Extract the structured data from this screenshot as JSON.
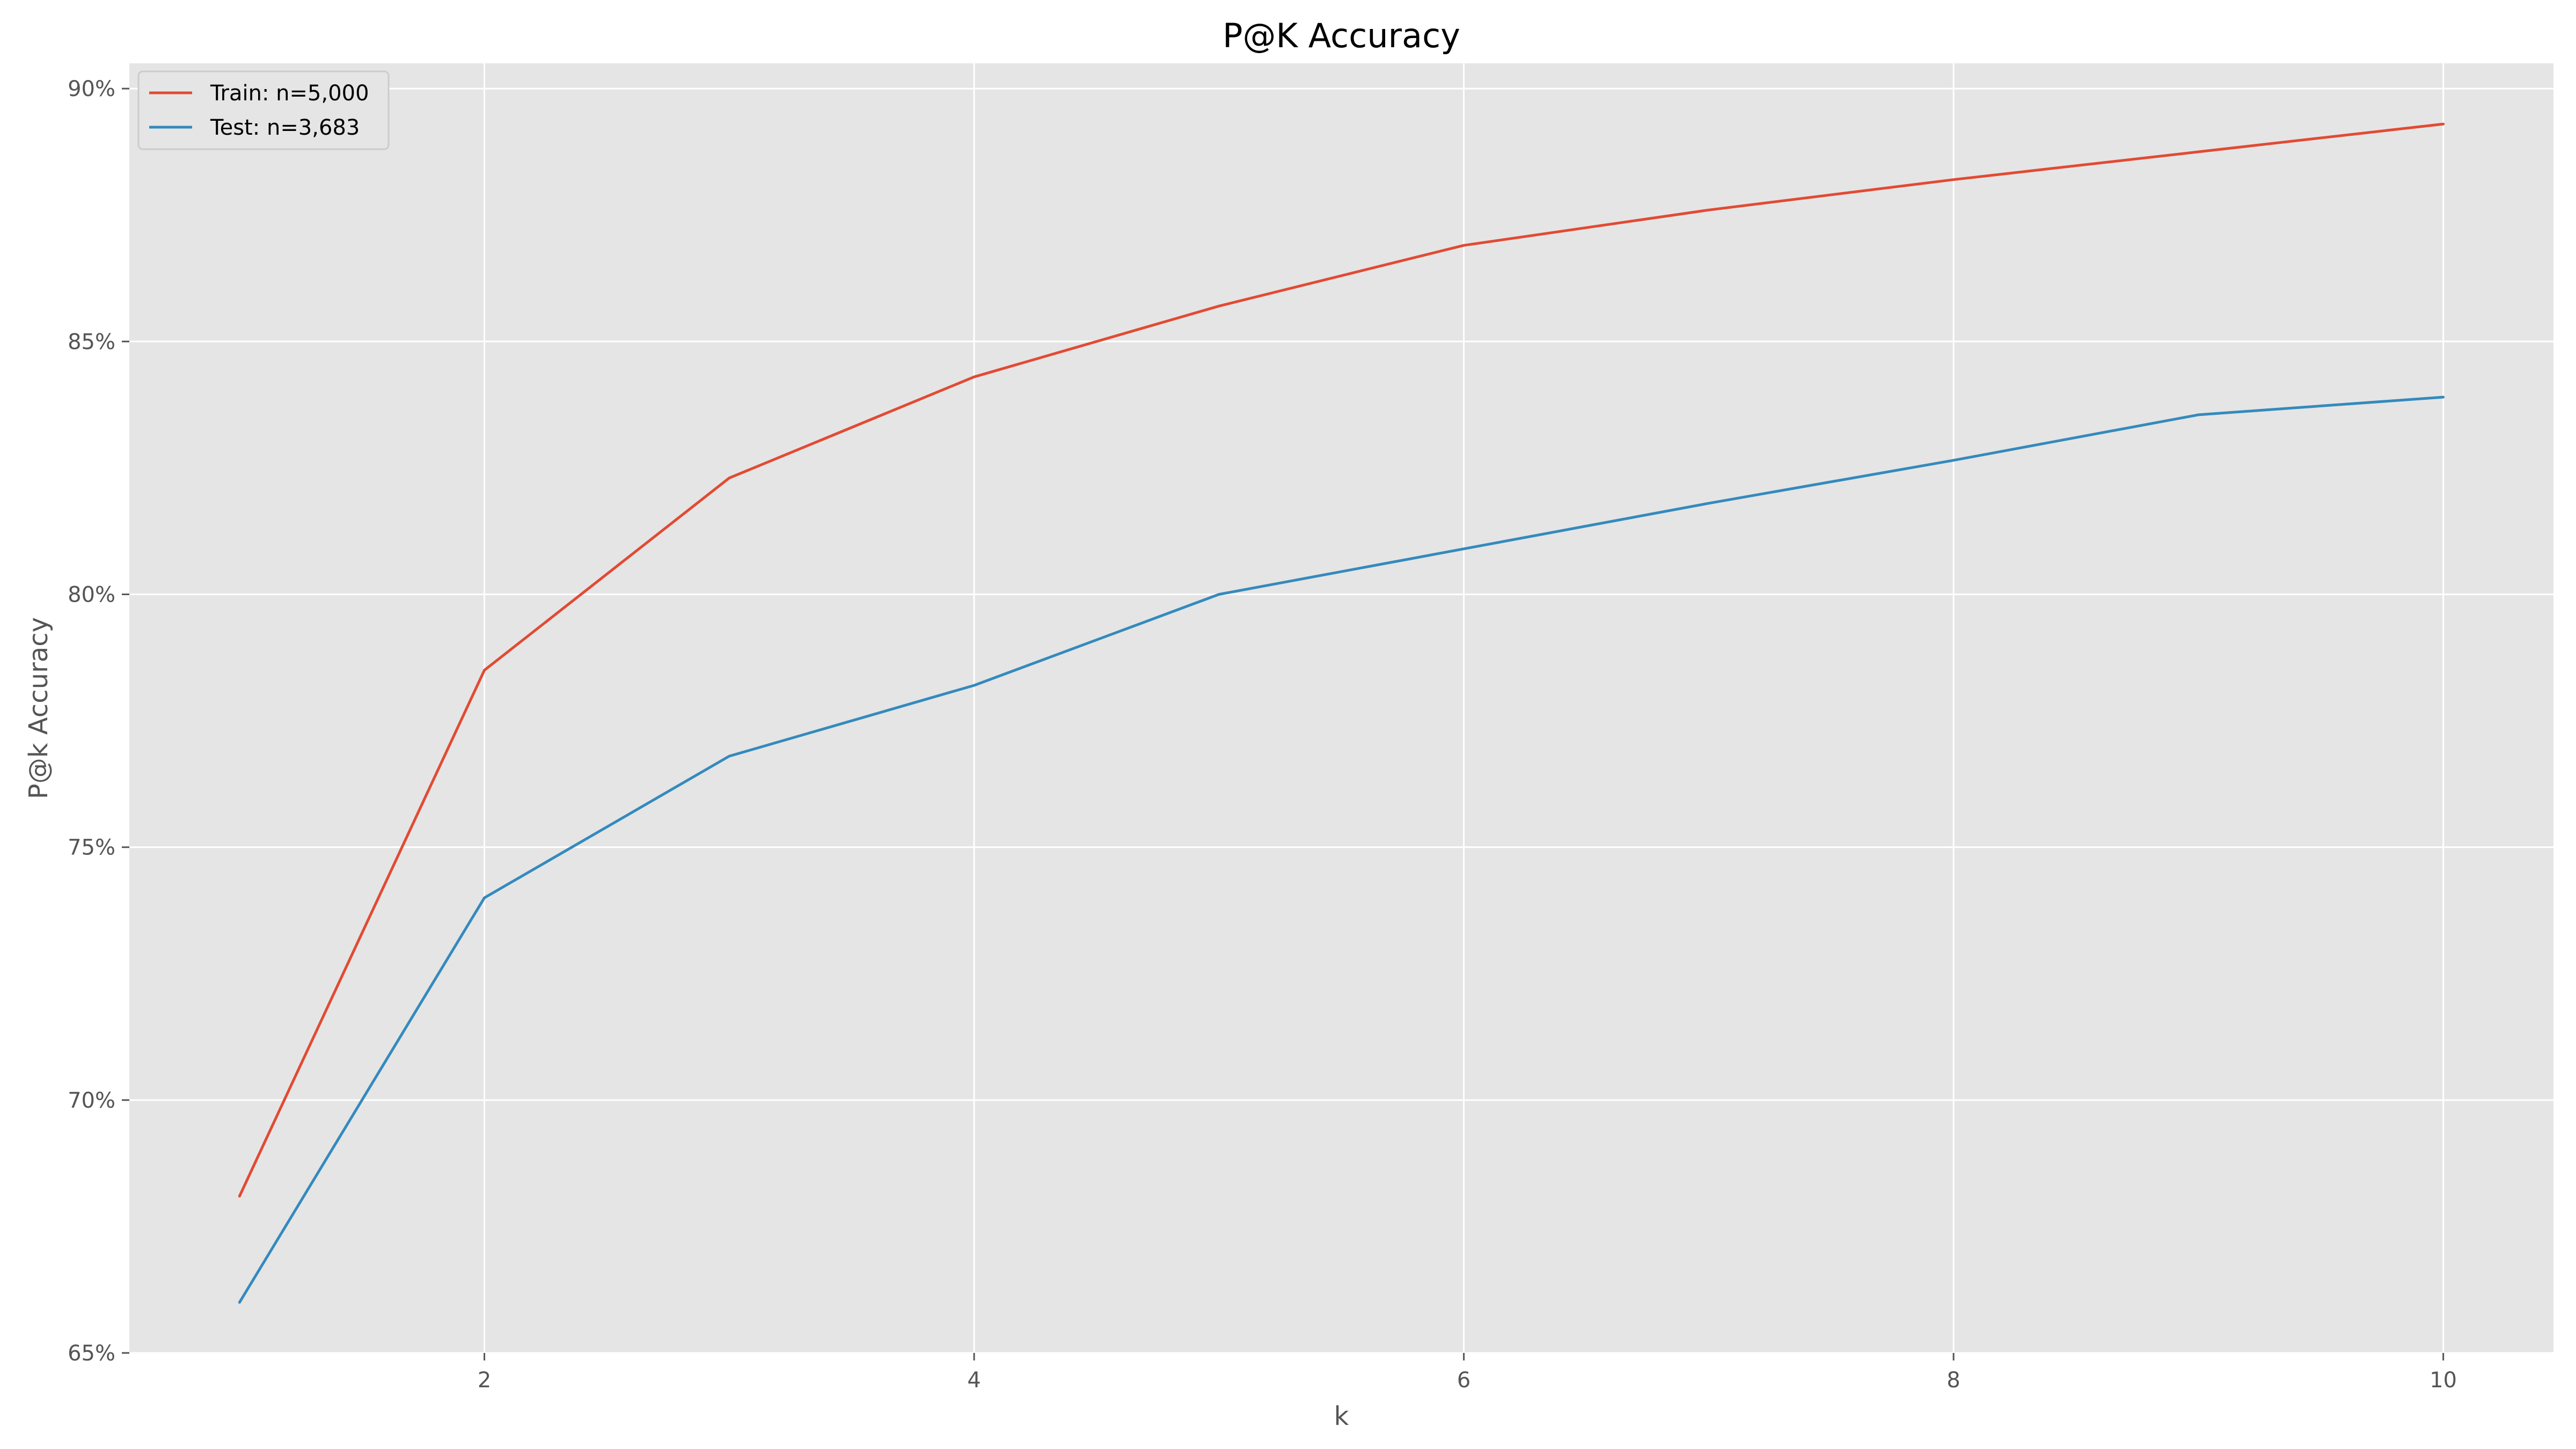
{
  "chart_data": {
    "type": "line",
    "title": "P@K Accuracy",
    "xlabel": "k",
    "ylabel": "P@k Accuracy",
    "x": [
      1,
      2,
      3,
      4,
      5,
      6,
      7,
      8,
      9,
      10
    ],
    "xlim": [
      0.55,
      10.45
    ],
    "ylim": [
      0.65,
      0.905
    ],
    "xticks": [
      2,
      4,
      6,
      8,
      10
    ],
    "xtick_labels": [
      "2",
      "4",
      "6",
      "8",
      "10"
    ],
    "yticks": [
      0.65,
      0.7,
      0.75,
      0.8,
      0.85,
      0.9
    ],
    "ytick_labels": [
      "65%",
      "70%",
      "75%",
      "80%",
      "85%",
      "90%"
    ],
    "grid": true,
    "legend_position": "top-left",
    "series": [
      {
        "name": "Train: n=5,000",
        "color": "#E24A33",
        "values": [
          0.681,
          0.785,
          0.823,
          0.843,
          0.857,
          0.869,
          0.876,
          0.882,
          0.8875,
          0.893
        ]
      },
      {
        "name": "Test: n=3,683",
        "color": "#348ABD",
        "values": [
          0.66,
          0.74,
          0.768,
          0.782,
          0.8,
          0.809,
          0.818,
          0.8265,
          0.8355,
          0.839
        ]
      }
    ]
  }
}
